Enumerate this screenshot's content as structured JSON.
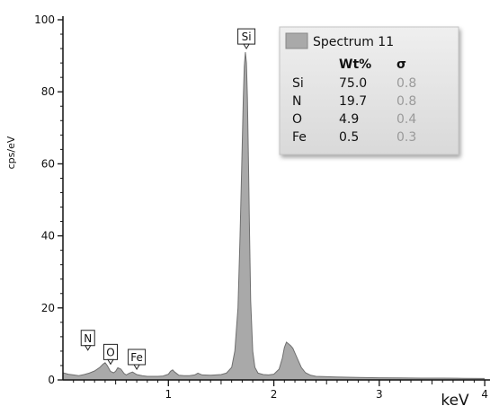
{
  "chart_data": {
    "type": "area",
    "title": "",
    "xlabel": "keV",
    "ylabel": "cps/eV",
    "xlim": [
      0.0,
      4.05
    ],
    "ylim": [
      0,
      100
    ],
    "xticks": [
      1,
      2,
      3,
      4
    ],
    "xtick_labels": [
      "1",
      "2",
      "3",
      "4"
    ],
    "yticks": [
      0,
      20,
      40,
      60,
      80,
      100
    ],
    "ytick_labels": [
      "0",
      "20",
      "40",
      "60",
      "80",
      "100"
    ],
    "grid": false,
    "colors": {
      "fill": "#a9a9a9",
      "stroke": "#6f6f6f"
    },
    "series": [
      {
        "x": [
          0.0,
          0.05,
          0.1,
          0.15,
          0.2,
          0.25,
          0.3,
          0.35,
          0.38,
          0.4,
          0.42,
          0.45,
          0.48,
          0.5,
          0.52,
          0.55,
          0.58,
          0.6,
          0.63,
          0.66,
          0.7,
          0.75,
          0.8,
          0.85,
          0.9,
          0.95,
          1.0,
          1.02,
          1.04,
          1.06,
          1.1,
          1.15,
          1.2,
          1.25,
          1.28,
          1.32,
          1.4,
          1.5,
          1.55,
          1.6,
          1.63,
          1.66,
          1.68,
          1.7,
          1.71,
          1.72,
          1.73,
          1.74,
          1.75,
          1.76,
          1.77,
          1.78,
          1.8,
          1.82,
          1.85,
          1.9,
          1.95,
          2.0,
          2.05,
          2.08,
          2.1,
          2.12,
          2.14,
          2.16,
          2.18,
          2.2,
          2.23,
          2.26,
          2.3,
          2.35,
          2.4,
          2.5,
          2.6,
          2.8,
          3.0,
          3.2,
          3.4,
          3.6,
          3.8,
          4.0
        ],
        "y": [
          2.0,
          1.6,
          1.4,
          1.2,
          1.5,
          1.9,
          2.5,
          3.5,
          4.4,
          4.8,
          4.0,
          2.4,
          2.0,
          2.4,
          3.4,
          3.0,
          1.8,
          1.4,
          1.9,
          2.2,
          1.5,
          1.2,
          1.0,
          1.0,
          1.0,
          1.1,
          1.6,
          2.4,
          2.8,
          2.2,
          1.3,
          1.2,
          1.2,
          1.4,
          1.9,
          1.4,
          1.3,
          1.5,
          1.9,
          3.5,
          8.0,
          20.0,
          40.0,
          65.0,
          78.0,
          87.0,
          91.0,
          88.0,
          78.0,
          60.0,
          40.0,
          22.0,
          8.0,
          3.5,
          1.9,
          1.5,
          1.4,
          1.6,
          3.0,
          6.0,
          9.0,
          10.5,
          10.0,
          9.5,
          8.8,
          7.5,
          5.5,
          3.5,
          2.0,
          1.3,
          1.0,
          0.9,
          0.8,
          0.7,
          0.6,
          0.55,
          0.5,
          0.5,
          0.45,
          0.4
        ]
      }
    ],
    "peak_labels": [
      {
        "text": "Si",
        "x": 1.74,
        "y": 91
      },
      {
        "text": "N",
        "x": 0.39,
        "y": 4.8
      },
      {
        "text": "O",
        "x": 0.52,
        "y": 3.4
      },
      {
        "text": "Fe",
        "x": 0.7,
        "y": 1.5
      }
    ],
    "legend": {
      "title": "Spectrum 11",
      "placement": "top-right",
      "swatch_color": "#a9a9a9",
      "columns": [
        "",
        "Wt%",
        "σ"
      ],
      "rows": [
        [
          "Si",
          "75.0",
          "0.8"
        ],
        [
          "N",
          "19.7",
          "0.8"
        ],
        [
          "O",
          "4.9",
          "0.4"
        ],
        [
          "Fe",
          "0.5",
          "0.3"
        ]
      ]
    }
  }
}
